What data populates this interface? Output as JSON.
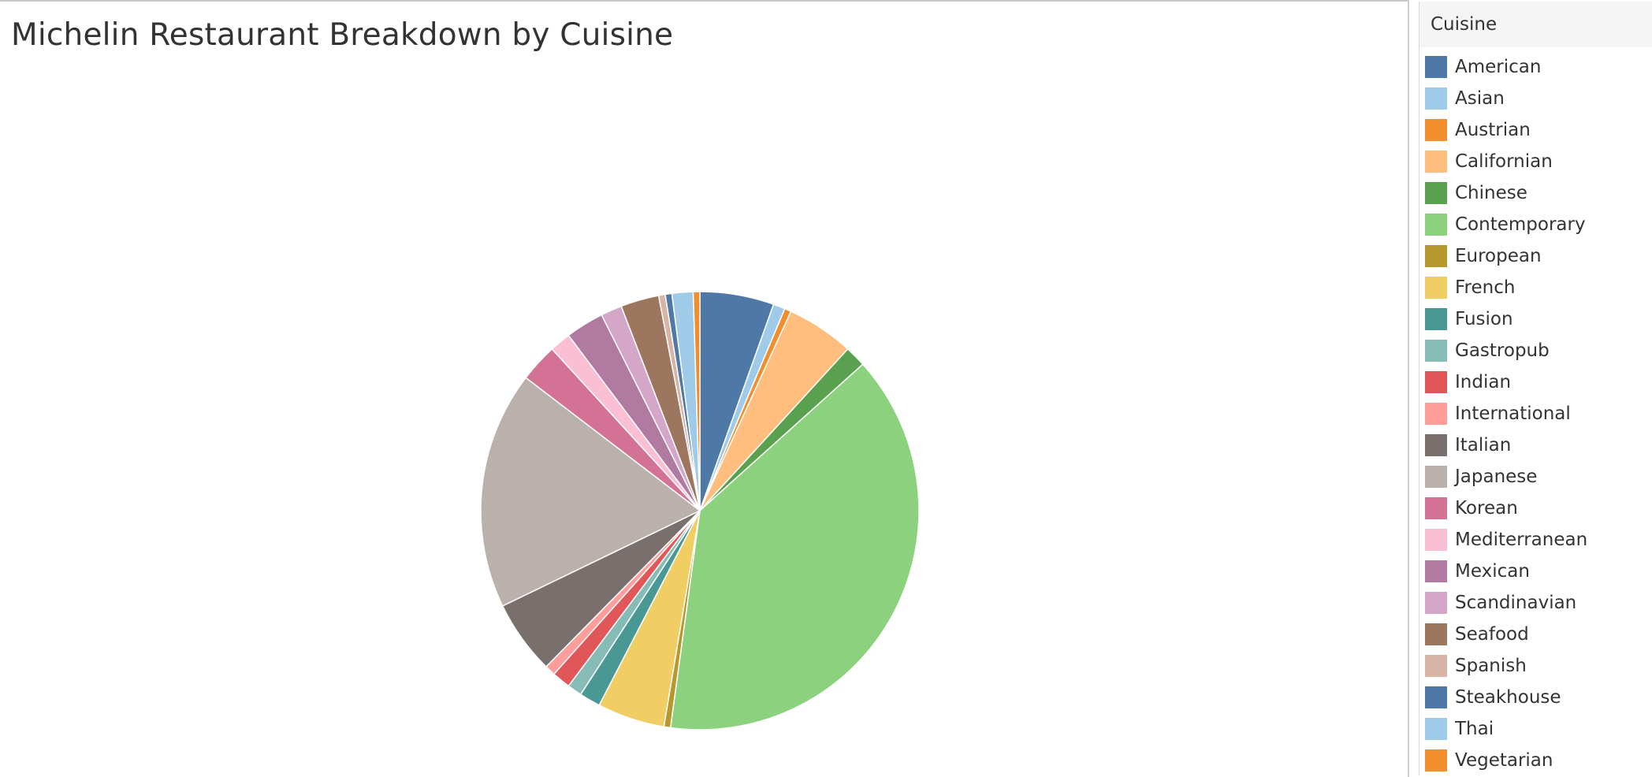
{
  "chart_data": {
    "type": "pie",
    "title": "Michelin Restaurant Breakdown by Cuisine",
    "legend_title": "Cuisine",
    "legend_placement": "right",
    "categories": [
      "American",
      "Asian",
      "Austrian",
      "Californian",
      "Chinese",
      "Contemporary",
      "European",
      "French",
      "Fusion",
      "Gastropub",
      "Indian",
      "International",
      "Italian",
      "Japanese",
      "Korean",
      "Mediterranean",
      "Mexican",
      "Scandinavian",
      "Seafood",
      "Spanish",
      "Steakhouse",
      "Thai",
      "Vegetarian"
    ],
    "values": [
      5.6,
      0.9,
      0.5,
      5.1,
      1.6,
      39.8,
      0.5,
      5.1,
      1.6,
      1.1,
      1.4,
      0.8,
      5.6,
      18.0,
      2.9,
      1.6,
      2.9,
      1.6,
      2.9,
      0.5,
      0.5,
      1.6,
      0.5
    ],
    "value_unit": "percent of restaurants",
    "start_angle_deg": 0,
    "direction": "clockwise",
    "colors": [
      "#4e79a7",
      "#a0cbe8",
      "#f28e2b",
      "#ffbe7d",
      "#59a14f",
      "#8cd17d",
      "#b6992d",
      "#f1ce63",
      "#499894",
      "#86bcb6",
      "#e15759",
      "#ff9d9a",
      "#79706e",
      "#bab0ac",
      "#d37295",
      "#fabfd2",
      "#b07aa1",
      "#d4a6c8",
      "#9d7660",
      "#d7b5a6",
      "#4e79a7",
      "#a0cbe8",
      "#f28e2b"
    ]
  }
}
